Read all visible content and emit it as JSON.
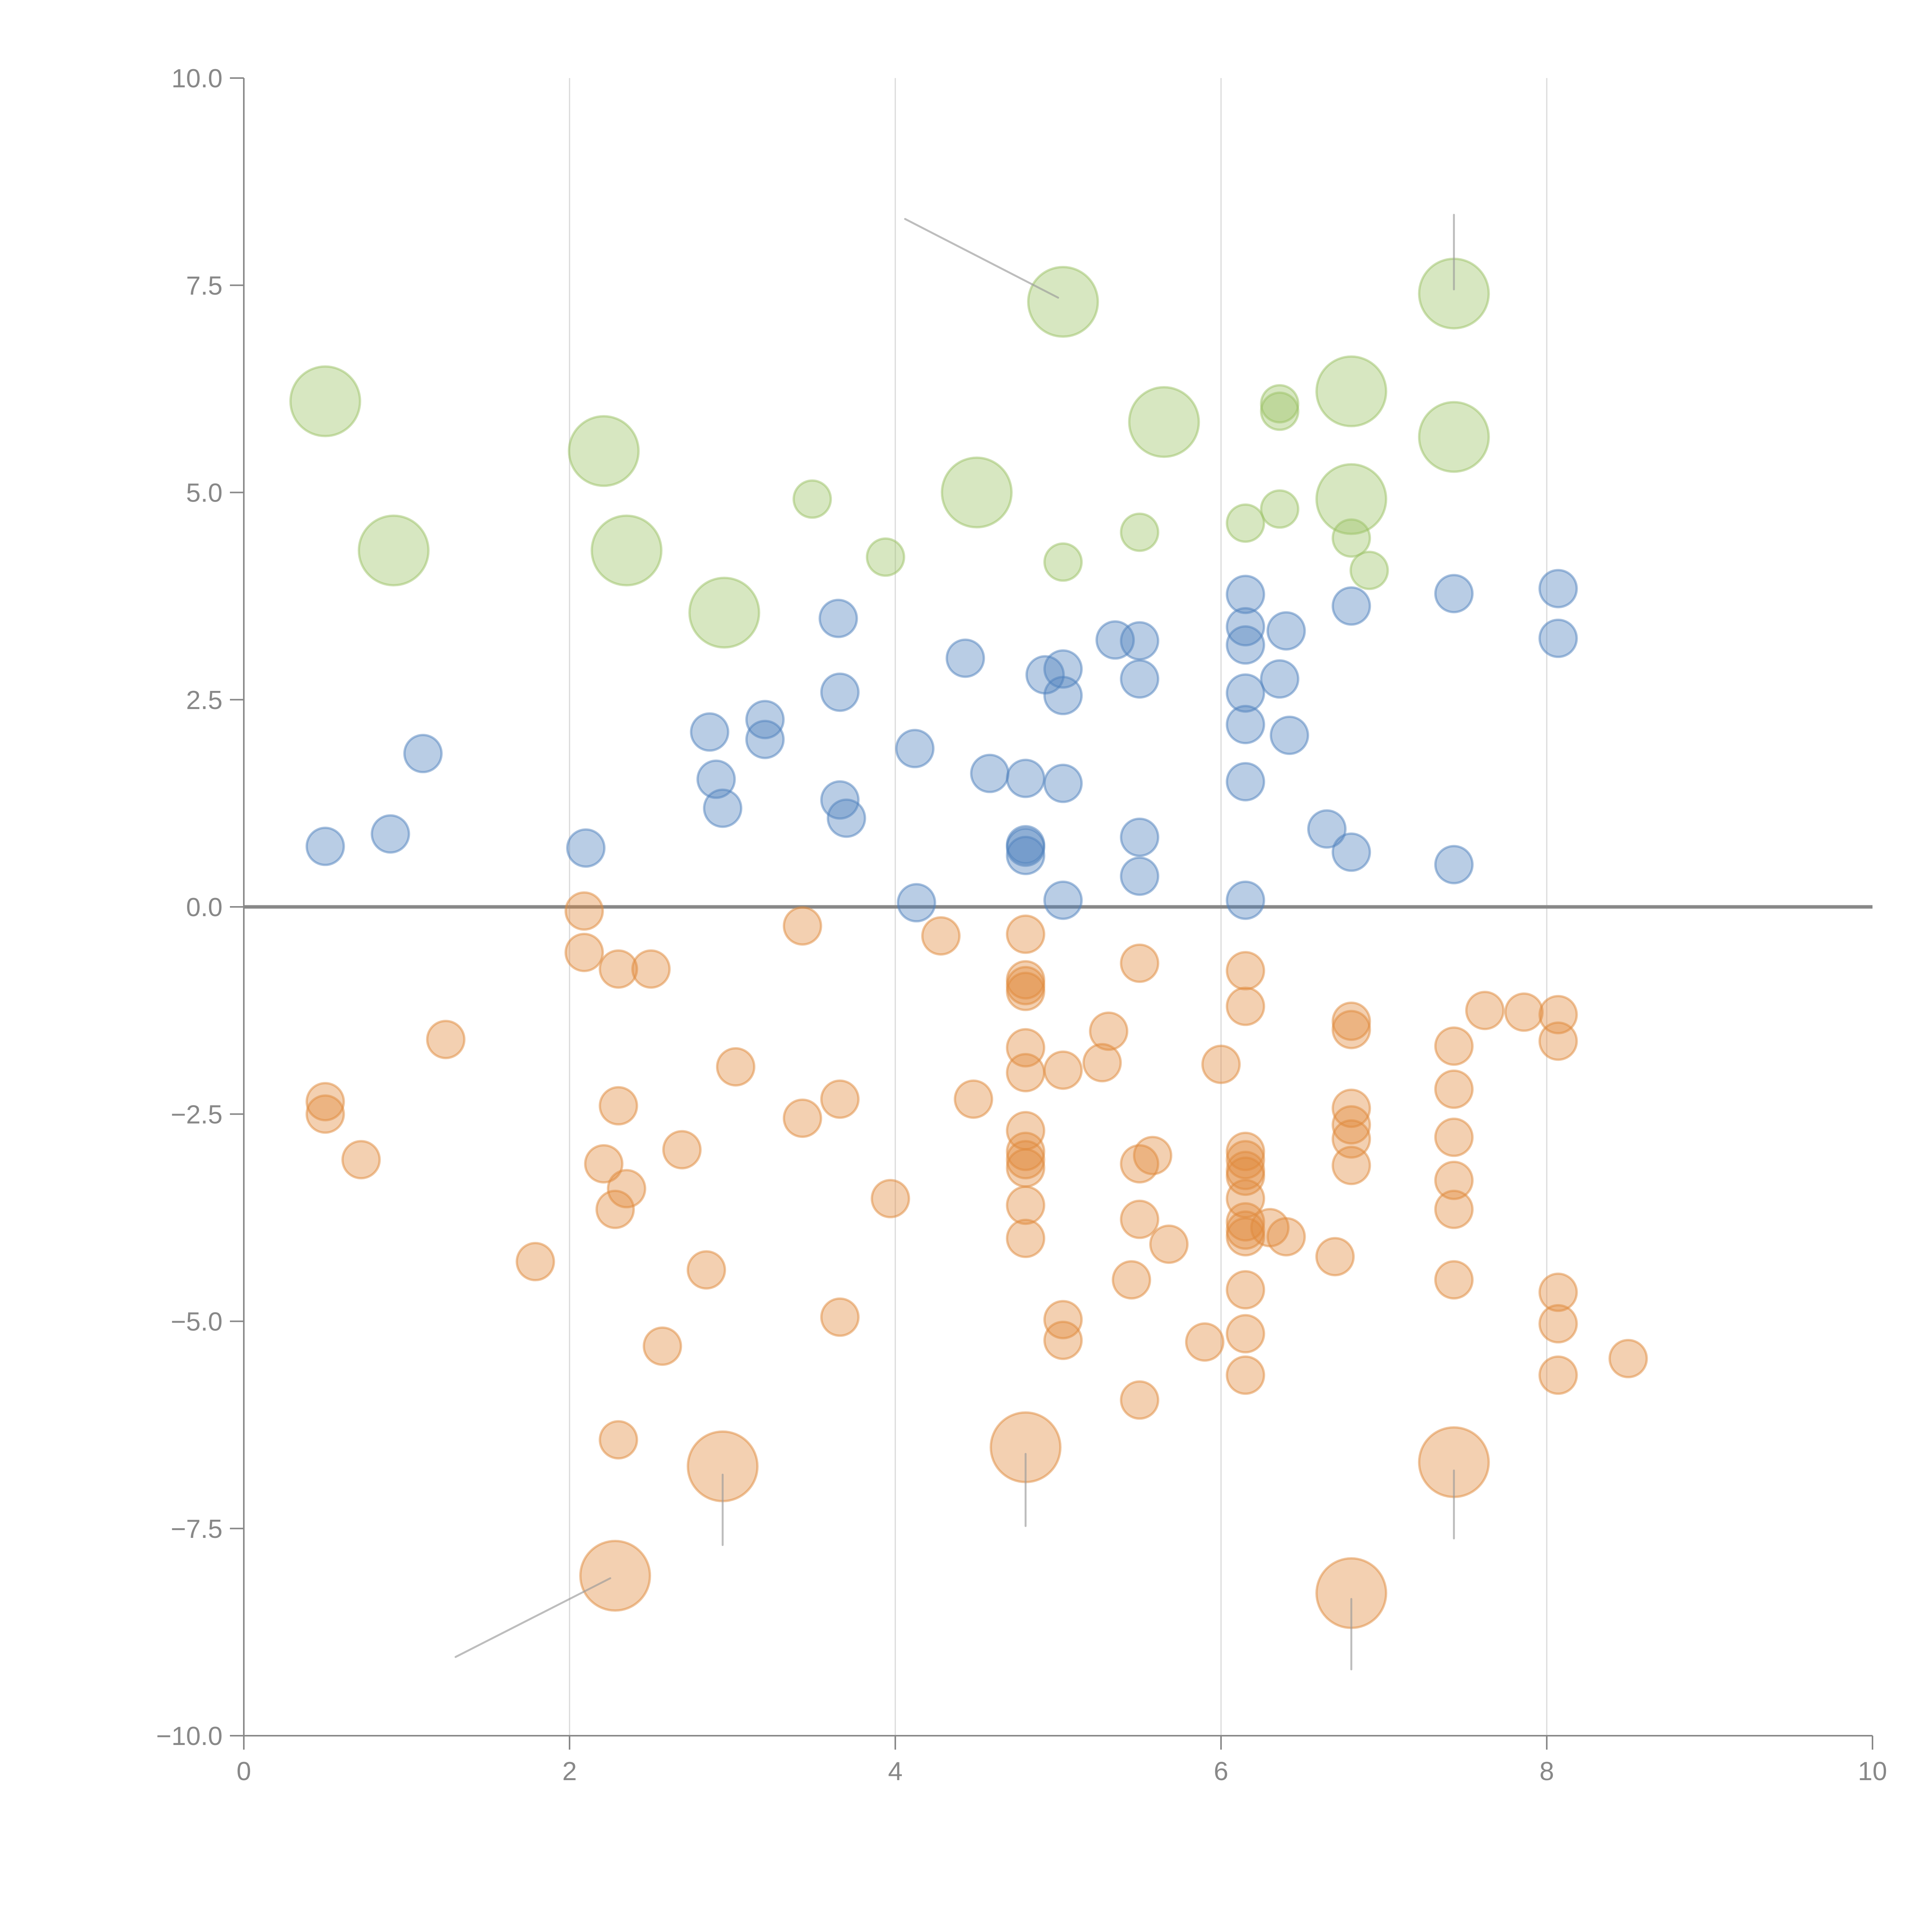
{
  "chart_data": {
    "type": "scatter",
    "title": "",
    "xlabel": "",
    "ylabel": "",
    "xlim": [
      0,
      10
    ],
    "ylim": [
      -10,
      10
    ],
    "grid": "vertical lines at x = 2, 4, 6, 8",
    "legend": "none",
    "x_ticks": [
      "0",
      "2",
      "4",
      "6",
      "8",
      "10"
    ],
    "y_ticks": [
      "10.0",
      "7.5",
      "5.0",
      "2.5",
      "0.0",
      "−2.5",
      "−5.0",
      "−7.5",
      "−10.0"
    ],
    "x_tick_values": [
      0,
      2,
      4,
      6,
      8,
      10
    ],
    "y_tick_values": [
      10,
      7.5,
      5,
      2.5,
      0,
      -2.5,
      -5,
      -7.5,
      -10
    ],
    "zero_line": 0,
    "colors": {
      "green": "#9bc265",
      "blue": "#4f81bd",
      "orange": "#e08a3c",
      "axis": "#888888",
      "grid": "#d9d9d9",
      "leader": "#999999"
    },
    "series": [
      {
        "name": "green-large",
        "color": "green",
        "size": "large",
        "points": [
          [
            0.5,
            6.1
          ],
          [
            0.92,
            4.3
          ],
          [
            2.21,
            5.5
          ],
          [
            2.35,
            4.3
          ],
          [
            2.95,
            3.55
          ],
          [
            4.5,
            5.0
          ],
          [
            5.03,
            7.3
          ],
          [
            5.65,
            5.85
          ],
          [
            6.8,
            6.22
          ],
          [
            6.8,
            4.92
          ],
          [
            7.43,
            7.4
          ],
          [
            7.43,
            5.67
          ]
        ]
      },
      {
        "name": "green-small",
        "color": "green",
        "size": "small",
        "points": [
          [
            3.49,
            4.92
          ],
          [
            3.94,
            4.22
          ],
          [
            5.03,
            4.16
          ],
          [
            5.5,
            4.52
          ],
          [
            6.15,
            4.63
          ],
          [
            6.36,
            4.8
          ],
          [
            6.36,
            6.07
          ],
          [
            6.36,
            5.98
          ],
          [
            6.8,
            4.45
          ],
          [
            6.91,
            4.06
          ]
        ]
      },
      {
        "name": "blue",
        "color": "blue",
        "size": "small",
        "points": [
          [
            0.5,
            0.73
          ],
          [
            0.9,
            0.88
          ],
          [
            1.1,
            1.85
          ],
          [
            2.1,
            0.71
          ],
          [
            2.86,
            2.11
          ],
          [
            2.9,
            1.54
          ],
          [
            2.94,
            1.19
          ],
          [
            3.2,
            2.26
          ],
          [
            3.2,
            2.02
          ],
          [
            3.65,
            3.48
          ],
          [
            3.66,
            2.59
          ],
          [
            3.66,
            1.29
          ],
          [
            3.7,
            1.07
          ],
          [
            4.12,
            1.91
          ],
          [
            4.13,
            0.05
          ],
          [
            4.43,
            3.0
          ],
          [
            4.58,
            1.61
          ],
          [
            4.8,
            1.55
          ],
          [
            4.8,
            0.75
          ],
          [
            4.8,
            0.72
          ],
          [
            4.8,
            0.62
          ],
          [
            4.92,
            2.8
          ],
          [
            5.03,
            2.87
          ],
          [
            5.03,
            2.55
          ],
          [
            5.03,
            1.49
          ],
          [
            5.03,
            0.08
          ],
          [
            5.35,
            3.22
          ],
          [
            5.5,
            3.21
          ],
          [
            5.5,
            2.75
          ],
          [
            5.5,
            0.84
          ],
          [
            5.5,
            0.37
          ],
          [
            6.15,
            3.77
          ],
          [
            6.15,
            3.38
          ],
          [
            6.15,
            3.16
          ],
          [
            6.15,
            2.58
          ],
          [
            6.15,
            2.2
          ],
          [
            6.15,
            1.51
          ],
          [
            6.15,
            0.08
          ],
          [
            6.36,
            2.75
          ],
          [
            6.4,
            3.33
          ],
          [
            6.42,
            2.07
          ],
          [
            6.65,
            0.94
          ],
          [
            6.8,
            3.63
          ],
          [
            6.8,
            0.66
          ],
          [
            7.43,
            3.78
          ],
          [
            7.43,
            0.51
          ],
          [
            8.07,
            3.84
          ],
          [
            8.07,
            3.24
          ]
        ]
      },
      {
        "name": "orange",
        "color": "orange",
        "size": "small",
        "points": [
          [
            0.5,
            -2.35
          ],
          [
            0.5,
            -2.5
          ],
          [
            0.72,
            -3.05
          ],
          [
            1.24,
            -1.6
          ],
          [
            1.79,
            -4.28
          ],
          [
            2.09,
            -0.05
          ],
          [
            2.09,
            -0.55
          ],
          [
            2.21,
            -3.1
          ],
          [
            2.28,
            -3.65
          ],
          [
            2.3,
            -0.75
          ],
          [
            2.3,
            -2.4
          ],
          [
            2.3,
            -6.43
          ],
          [
            2.35,
            -3.4
          ],
          [
            2.5,
            -0.75
          ],
          [
            2.57,
            -5.3
          ],
          [
            2.69,
            -2.93
          ],
          [
            2.84,
            -4.38
          ],
          [
            3.02,
            -1.93
          ],
          [
            3.43,
            -0.23
          ],
          [
            3.43,
            -2.55
          ],
          [
            3.66,
            -2.32
          ],
          [
            3.66,
            -4.95
          ],
          [
            3.97,
            -3.52
          ],
          [
            4.28,
            -0.35
          ],
          [
            4.48,
            -2.32
          ],
          [
            4.8,
            -0.33
          ],
          [
            4.8,
            -0.88
          ],
          [
            4.8,
            -0.95
          ],
          [
            4.8,
            -1.02
          ],
          [
            4.8,
            -1.7
          ],
          [
            4.8,
            -2.0
          ],
          [
            4.8,
            -2.7
          ],
          [
            4.8,
            -2.95
          ],
          [
            4.8,
            -3.05
          ],
          [
            4.8,
            -3.15
          ],
          [
            4.8,
            -3.6
          ],
          [
            4.8,
            -4.0
          ],
          [
            5.03,
            -1.97
          ],
          [
            5.03,
            -4.98
          ],
          [
            5.03,
            -5.23
          ],
          [
            5.27,
            -1.88
          ],
          [
            5.31,
            -1.5
          ],
          [
            5.45,
            -4.5
          ],
          [
            5.5,
            -0.68
          ],
          [
            5.5,
            -3.1
          ],
          [
            5.5,
            -3.77
          ],
          [
            5.5,
            -5.95
          ],
          [
            5.58,
            -3.0
          ],
          [
            5.68,
            -4.07
          ],
          [
            5.9,
            -5.25
          ],
          [
            6.0,
            -1.9
          ],
          [
            6.15,
            -0.77
          ],
          [
            6.15,
            -1.2
          ],
          [
            6.15,
            -2.95
          ],
          [
            6.15,
            -3.05
          ],
          [
            6.15,
            -3.18
          ],
          [
            6.15,
            -3.25
          ],
          [
            6.15,
            -3.52
          ],
          [
            6.15,
            -3.8
          ],
          [
            6.15,
            -3.9
          ],
          [
            6.15,
            -3.98
          ],
          [
            6.15,
            -4.62
          ],
          [
            6.15,
            -5.15
          ],
          [
            6.15,
            -5.65
          ],
          [
            6.3,
            -3.87
          ],
          [
            6.4,
            -3.98
          ],
          [
            6.7,
            -4.22
          ],
          [
            6.8,
            -1.38
          ],
          [
            6.8,
            -1.48
          ],
          [
            6.8,
            -2.43
          ],
          [
            6.8,
            -2.63
          ],
          [
            6.8,
            -2.8
          ],
          [
            6.8,
            -3.12
          ],
          [
            7.43,
            -1.68
          ],
          [
            7.43,
            -2.2
          ],
          [
            7.43,
            -2.78
          ],
          [
            7.43,
            -3.3
          ],
          [
            7.43,
            -3.65
          ],
          [
            7.43,
            -4.5
          ],
          [
            7.62,
            -1.25
          ],
          [
            7.86,
            -1.27
          ],
          [
            8.07,
            -1.3
          ],
          [
            8.07,
            -1.62
          ],
          [
            8.07,
            -4.65
          ],
          [
            8.07,
            -5.03
          ],
          [
            8.07,
            -5.65
          ],
          [
            8.5,
            -5.45
          ]
        ]
      },
      {
        "name": "orange-large",
        "color": "orange",
        "size": "large",
        "points": [
          [
            2.28,
            -8.07
          ],
          [
            2.94,
            -6.75
          ],
          [
            4.8,
            -6.52
          ],
          [
            6.8,
            -8.28
          ],
          [
            7.43,
            -6.7
          ]
        ]
      }
    ],
    "leader_lines": [
      [
        [
          4.06,
          8.3
        ],
        [
          5.0,
          7.35
        ]
      ],
      [
        [
          7.43,
          8.35
        ],
        [
          7.43,
          7.45
        ]
      ],
      [
        [
          1.3,
          -9.05
        ],
        [
          2.25,
          -8.1
        ]
      ],
      [
        [
          2.94,
          -6.85
        ],
        [
          2.94,
          -7.7
        ]
      ],
      [
        [
          4.8,
          -6.6
        ],
        [
          4.8,
          -7.47
        ]
      ],
      [
        [
          6.8,
          -8.35
        ],
        [
          6.8,
          -9.2
        ]
      ],
      [
        [
          7.43,
          -6.8
        ],
        [
          7.43,
          -7.62
        ]
      ]
    ]
  }
}
